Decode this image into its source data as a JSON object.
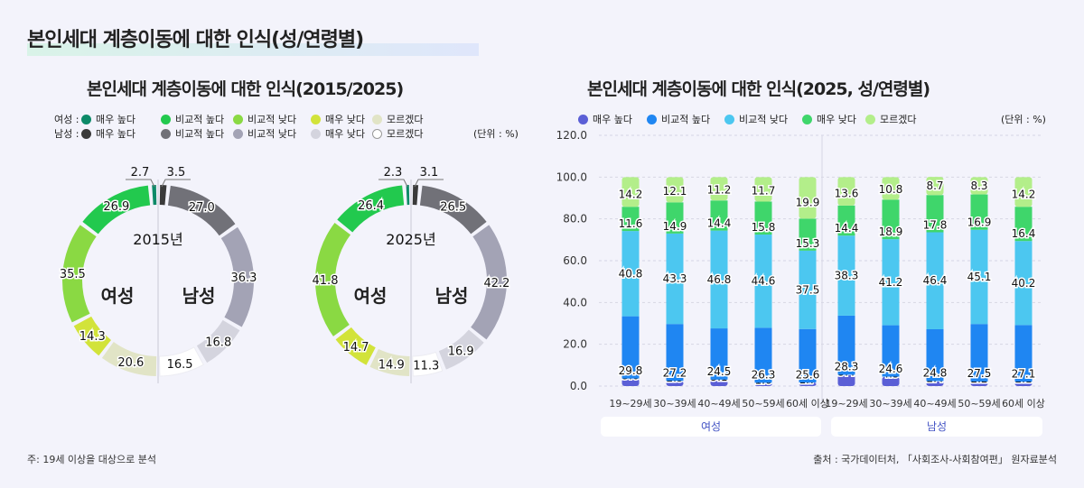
{
  "title": "본인세대 계층이동에 대한 인식(성/연령별)",
  "left": {
    "title": "본인세대 계층이동에 대한 인식(2015/2025)",
    "legend": {
      "female_label": "여성 :",
      "male_label": "남성 :",
      "female_items": [
        {
          "label": "매우 높다",
          "color": "#0d8a68"
        },
        {
          "label": "비교적 높다",
          "color": "#22c94e"
        },
        {
          "label": "비교적 낮다",
          "color": "#8ad943"
        },
        {
          "label": "매우 낮다",
          "color": "#d2e33a"
        },
        {
          "label": "모르겠다",
          "color": "#e1e4c6"
        }
      ],
      "male_items": [
        {
          "label": "매우 높다",
          "color": "#3a3a3a"
        },
        {
          "label": "비교적 높다",
          "color": "#717178"
        },
        {
          "label": "비교적 낮다",
          "color": "#a3a3b5"
        },
        {
          "label": "매우 낮다",
          "color": "#d4d4de"
        },
        {
          "label": "모르겠다",
          "color": "#ffffff"
        }
      ]
    },
    "unit": "(단위 : %)",
    "donuts": [
      {
        "year_label": "2015년",
        "female_label": "여성",
        "male_label": "남성",
        "female": [
          2.7,
          26.9,
          35.5,
          14.3,
          20.6
        ],
        "male": [
          3.5,
          27.0,
          36.3,
          16.8,
          16.5
        ],
        "female_text": [
          "2.7",
          "26.9",
          "35.5",
          "14.3",
          "20.6"
        ],
        "male_text": [
          "3.5",
          "27.0",
          "36.3",
          "16.8",
          "16.5"
        ]
      },
      {
        "year_label": "2025년",
        "female_label": "여성",
        "male_label": "남성",
        "female": [
          2.3,
          26.4,
          41.8,
          14.7,
          14.9
        ],
        "male": [
          3.1,
          26.5,
          42.2,
          16.9,
          11.3
        ],
        "female_text": [
          "2.3",
          "26.4",
          "41.8",
          "14.7",
          "14.9"
        ],
        "male_text": [
          "3.1",
          "26.5",
          "42.2",
          "16.9",
          "11.3"
        ]
      }
    ]
  },
  "chart_data": {
    "type": "bar",
    "title": "본인세대 계층이동에 대한 인식(2025, 성/연령별)",
    "stacked": true,
    "ylim": [
      0,
      120
    ],
    "yticks": [
      "0.0",
      "20.0",
      "40.0",
      "60.0",
      "80.0",
      "100.0",
      "120.0"
    ],
    "unit": "(단위 : %)",
    "categories": [
      "19~29세",
      "30~39세",
      "40~49세",
      "50~59세",
      "60세 이상",
      "19~29세",
      "30~39세",
      "40~49세",
      "50~59세",
      "60세 이상"
    ],
    "groups": [
      {
        "label": "여성",
        "span": [
          0,
          4
        ]
      },
      {
        "label": "남성",
        "span": [
          5,
          9
        ]
      }
    ],
    "series": [
      {
        "name": "매우 높다",
        "color": "#5b5fd6",
        "values": [
          3.6,
          2.5,
          3.1,
          1.6,
          1.7,
          5.4,
          4.5,
          2.4,
          2.2,
          2.1
        ],
        "text": [
          "3.6",
          "2.5",
          "3.1",
          "1.6",
          "1.7",
          "5.4",
          "4.5",
          "2.4",
          "2.2",
          "2.1"
        ]
      },
      {
        "name": "비교적 높다",
        "color": "#1f86f2",
        "values": [
          29.8,
          27.2,
          24.5,
          26.3,
          25.6,
          28.3,
          24.6,
          24.8,
          27.5,
          27.1
        ],
        "text": [
          "29.8",
          "27.2",
          "24.5",
          "26.3",
          "25.6",
          "28.3",
          "24.6",
          "24.8",
          "27.5",
          "27.1"
        ]
      },
      {
        "name": "비교적 낮다",
        "color": "#4cc7f0",
        "values": [
          40.8,
          43.3,
          46.8,
          44.6,
          37.5,
          38.3,
          41.2,
          46.4,
          45.1,
          40.2
        ],
        "text": [
          "40.8",
          "43.3",
          "46.8",
          "44.6",
          "37.5",
          "38.3",
          "41.2",
          "46.4",
          "45.1",
          "40.2"
        ]
      },
      {
        "name": "매우 낮다",
        "color": "#3fd66b",
        "values": [
          11.6,
          14.9,
          14.4,
          15.8,
          15.3,
          14.4,
          18.9,
          17.8,
          16.9,
          16.4
        ],
        "text": [
          "11.6",
          "14.9",
          "14.4",
          "15.8",
          "15.3",
          "14.4",
          "18.9",
          "17.8",
          "16.9",
          "16.4"
        ]
      },
      {
        "name": "모르겠다",
        "color": "#b3ee8a",
        "values": [
          14.2,
          12.1,
          11.2,
          11.7,
          19.9,
          13.6,
          10.8,
          8.7,
          8.3,
          14.2
        ],
        "text": [
          "14.2",
          "12.1",
          "11.2",
          "11.7",
          "19.9",
          "13.6",
          "10.8",
          "8.7",
          "8.3",
          "14.2"
        ]
      }
    ]
  },
  "footer": {
    "note": "주: 19세 이상을 대상으로 분석",
    "source": "출처 : 국가데이터처, 「사회조사-사회참여편」 원자료분석"
  }
}
